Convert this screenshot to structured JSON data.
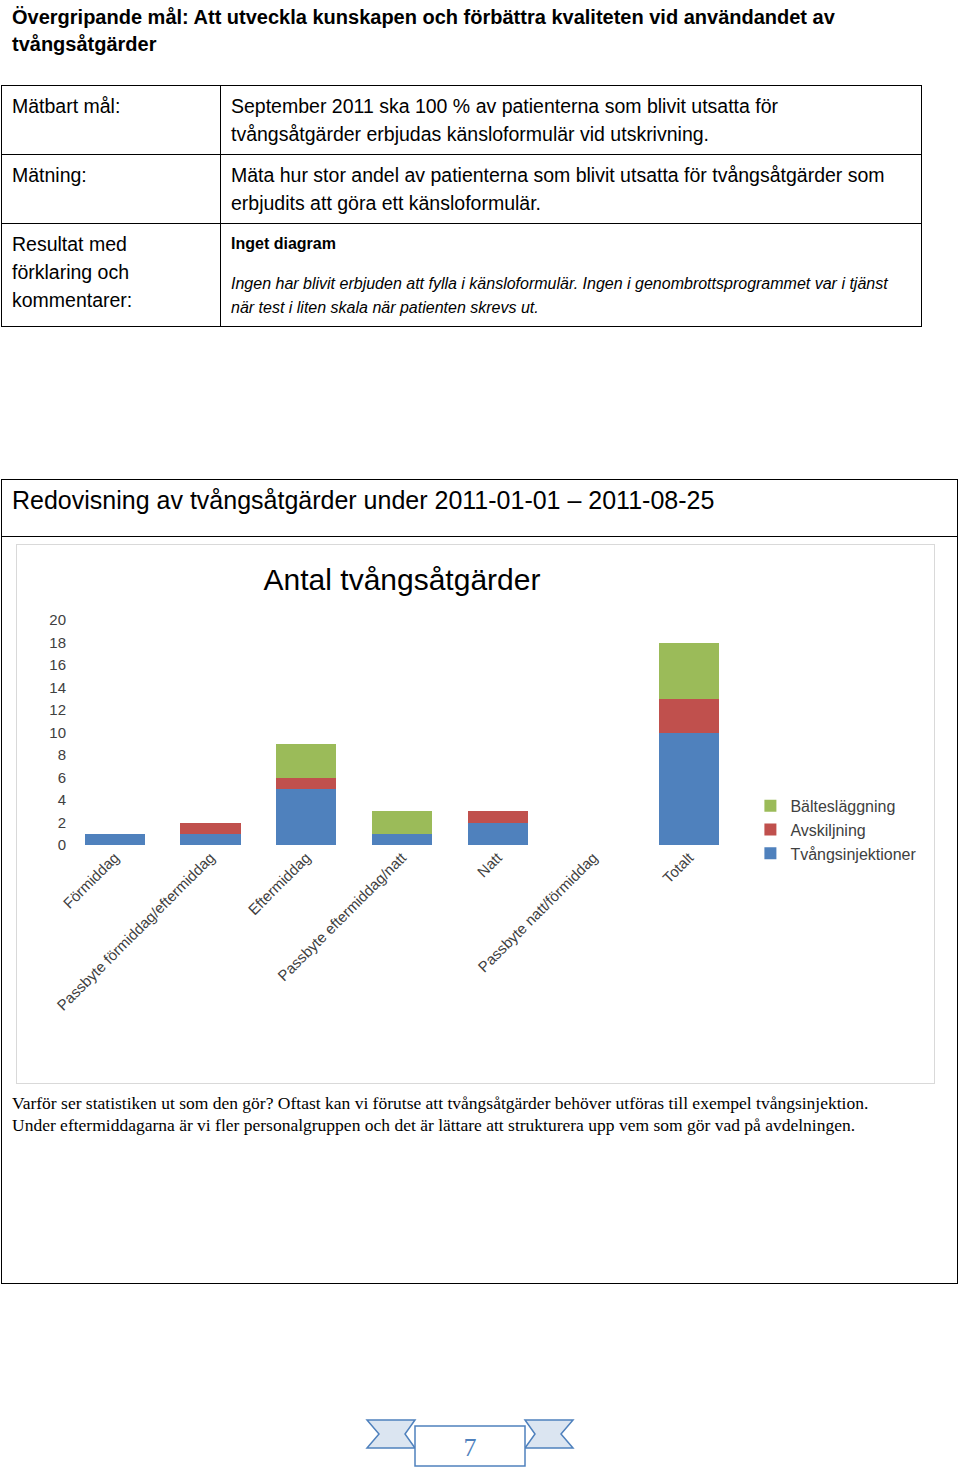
{
  "header": {
    "title": "Övergripande mål: Att utveckla kunskapen och förbättra kvaliteten vid användandet av tvångsåtgärder"
  },
  "table": {
    "rows": [
      {
        "label": "Mätbart mål:",
        "text": "September 2011 ska 100 % av patienterna som blivit utsatta för tvångsåtgärder erbjudas känsloformulär vid utskrivning."
      },
      {
        "label": "Mätning:",
        "text": "Mäta hur stor andel av patienterna som blivit utsatta för tvångsåtgärder som erbjudits att göra ett känsloformulär."
      },
      {
        "label": "Resultat med förklaring och kommentarer:",
        "heading": "Inget diagram",
        "text": "Ingen har blivit erbjuden att fylla i känsloformulär. Ingen i genombrottsprogrammet var i tjänst när test i liten skala när patienten skrevs ut."
      }
    ]
  },
  "section": {
    "title": "Redovisning av tvångsåtgärder under 2011-01-01 – 2011-08-25",
    "text": "Varför ser statistiken ut som den gör? Oftast kan vi förutse att tvångsåtgärder behöver utföras till exempel tvångsinjektion. Under eftermiddagarna är vi fler personalgruppen och det är lättare att strukturera upp vem som gör vad på avdelningen."
  },
  "chart_data": {
    "type": "bar",
    "title": "Antal tvångsåtgärder",
    "categories": [
      "Förmiddag",
      "Passbyte förmiddag/eftermiddag",
      "Eftermiddag",
      "Passbyte eftermiddag/natt",
      "Natt",
      "Passbyte natt/förmiddag",
      "Totalt"
    ],
    "series": [
      {
        "name": "Tvångsinjektioner",
        "color": "#4f81bd",
        "values": [
          1,
          1,
          5,
          1,
          2,
          0,
          10
        ]
      },
      {
        "name": "Avskiljning",
        "color": "#c0504d",
        "values": [
          0,
          1,
          1,
          0,
          1,
          0,
          3
        ]
      },
      {
        "name": "Bältesläggning",
        "color": "#9bbb59",
        "values": [
          0,
          0,
          3,
          2,
          0,
          0,
          5
        ]
      }
    ],
    "stacked": true,
    "ylim": [
      0,
      20
    ],
    "yticks": [
      0,
      2,
      4,
      6,
      8,
      10,
      12,
      14,
      16,
      18,
      20
    ],
    "grid": false,
    "legend": "right"
  },
  "page_number": 7
}
